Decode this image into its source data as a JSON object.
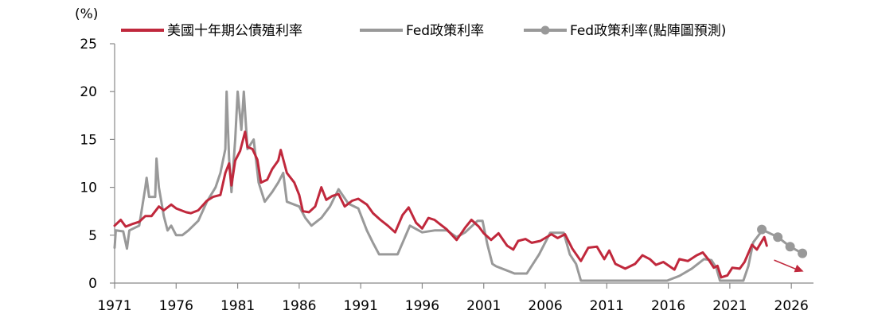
{
  "chart_data": {
    "type": "line",
    "ylabel": "(%)",
    "ylim": [
      0,
      25
    ],
    "xlim": [
      1971,
      2027.8
    ],
    "x_ticks": [
      "1971",
      "1976",
      "1981",
      "1986",
      "1991",
      "1996",
      "2001",
      "2006",
      "2011",
      "2016",
      "2021",
      "2026"
    ],
    "y_ticks": [
      "25",
      "20",
      "15",
      "10",
      "5",
      "0"
    ],
    "grid": false,
    "legend_position": "top",
    "colors": {
      "treasury": "#c0283c",
      "fed": "#999999",
      "dot_plot": "#999999",
      "axis": "#888888"
    },
    "series": [
      {
        "name": "美國十年期公債殖利率",
        "points": [
          [
            1971.0,
            6.0
          ],
          [
            1971.5,
            6.6
          ],
          [
            1971.9,
            5.9
          ],
          [
            1972.5,
            6.2
          ],
          [
            1973.0,
            6.4
          ],
          [
            1973.5,
            7.0
          ],
          [
            1974.0,
            7.0
          ],
          [
            1974.6,
            8.0
          ],
          [
            1975.0,
            7.6
          ],
          [
            1975.6,
            8.2
          ],
          [
            1976.0,
            7.8
          ],
          [
            1976.8,
            7.4
          ],
          [
            1977.2,
            7.3
          ],
          [
            1977.8,
            7.6
          ],
          [
            1978.5,
            8.6
          ],
          [
            1979.0,
            9.0
          ],
          [
            1979.6,
            9.2
          ],
          [
            1980.0,
            11.5
          ],
          [
            1980.3,
            12.5
          ],
          [
            1980.5,
            10.2
          ],
          [
            1980.8,
            12.8
          ],
          [
            1981.2,
            13.8
          ],
          [
            1981.6,
            15.8
          ],
          [
            1981.8,
            14.2
          ],
          [
            1982.2,
            14.0
          ],
          [
            1982.6,
            12.9
          ],
          [
            1982.9,
            10.5
          ],
          [
            1983.4,
            10.8
          ],
          [
            1983.8,
            11.9
          ],
          [
            1984.3,
            12.8
          ],
          [
            1984.5,
            13.9
          ],
          [
            1985.0,
            11.5
          ],
          [
            1985.6,
            10.5
          ],
          [
            1986.0,
            9.2
          ],
          [
            1986.3,
            7.5
          ],
          [
            1986.8,
            7.4
          ],
          [
            1987.3,
            8.0
          ],
          [
            1987.8,
            10.0
          ],
          [
            1988.2,
            8.7
          ],
          [
            1988.7,
            9.1
          ],
          [
            1989.2,
            9.3
          ],
          [
            1989.7,
            8.0
          ],
          [
            1990.3,
            8.6
          ],
          [
            1990.8,
            8.8
          ],
          [
            1991.5,
            8.2
          ],
          [
            1992.0,
            7.3
          ],
          [
            1992.6,
            6.6
          ],
          [
            1993.2,
            6.0
          ],
          [
            1993.8,
            5.3
          ],
          [
            1994.4,
            7.1
          ],
          [
            1994.9,
            7.9
          ],
          [
            1995.5,
            6.3
          ],
          [
            1996.0,
            5.7
          ],
          [
            1996.5,
            6.8
          ],
          [
            1997.0,
            6.6
          ],
          [
            1997.5,
            6.1
          ],
          [
            1998.0,
            5.6
          ],
          [
            1998.8,
            4.5
          ],
          [
            1999.5,
            5.8
          ],
          [
            2000.0,
            6.6
          ],
          [
            2000.6,
            5.9
          ],
          [
            2001.0,
            5.2
          ],
          [
            2001.6,
            4.5
          ],
          [
            2002.2,
            5.2
          ],
          [
            2002.9,
            3.9
          ],
          [
            2003.4,
            3.5
          ],
          [
            2003.8,
            4.4
          ],
          [
            2004.4,
            4.6
          ],
          [
            2004.9,
            4.2
          ],
          [
            2005.6,
            4.4
          ],
          [
            2006.5,
            5.1
          ],
          [
            2007.0,
            4.7
          ],
          [
            2007.6,
            5.1
          ],
          [
            2008.2,
            3.6
          ],
          [
            2008.9,
            2.3
          ],
          [
            2009.5,
            3.7
          ],
          [
            2010.2,
            3.8
          ],
          [
            2010.8,
            2.5
          ],
          [
            2011.2,
            3.4
          ],
          [
            2011.7,
            2.0
          ],
          [
            2012.5,
            1.5
          ],
          [
            2013.3,
            2.0
          ],
          [
            2013.9,
            2.9
          ],
          [
            2014.5,
            2.5
          ],
          [
            2015.0,
            1.9
          ],
          [
            2015.6,
            2.2
          ],
          [
            2016.5,
            1.4
          ],
          [
            2016.9,
            2.5
          ],
          [
            2017.6,
            2.3
          ],
          [
            2018.3,
            2.9
          ],
          [
            2018.8,
            3.2
          ],
          [
            2019.3,
            2.4
          ],
          [
            2019.7,
            1.6
          ],
          [
            2020.0,
            1.8
          ],
          [
            2020.3,
            0.6
          ],
          [
            2020.8,
            0.8
          ],
          [
            2021.2,
            1.6
          ],
          [
            2021.8,
            1.5
          ],
          [
            2022.2,
            2.2
          ],
          [
            2022.8,
            4.0
          ],
          [
            2023.2,
            3.5
          ],
          [
            2023.8,
            4.8
          ],
          [
            2024.0,
            3.9
          ]
        ]
      },
      {
        "name": "Fed政策利率",
        "points": [
          [
            1971.0,
            3.7
          ],
          [
            1971.1,
            5.5
          ],
          [
            1971.7,
            5.4
          ],
          [
            1972.0,
            3.6
          ],
          [
            1972.2,
            5.5
          ],
          [
            1973.0,
            6.0
          ],
          [
            1973.5,
            10.0
          ],
          [
            1973.6,
            11.0
          ],
          [
            1973.8,
            9.0
          ],
          [
            1974.3,
            9.0
          ],
          [
            1974.4,
            13.0
          ],
          [
            1974.6,
            10.0
          ],
          [
            1975.0,
            7.0
          ],
          [
            1975.3,
            5.5
          ],
          [
            1975.6,
            6.0
          ],
          [
            1976.0,
            5.0
          ],
          [
            1976.5,
            5.0
          ],
          [
            1977.0,
            5.5
          ],
          [
            1977.8,
            6.5
          ],
          [
            1978.5,
            8.5
          ],
          [
            1979.2,
            10.0
          ],
          [
            1979.6,
            11.5
          ],
          [
            1980.0,
            14.0
          ],
          [
            1980.1,
            20.0
          ],
          [
            1980.3,
            13.0
          ],
          [
            1980.5,
            9.5
          ],
          [
            1980.8,
            15.0
          ],
          [
            1981.0,
            20.0
          ],
          [
            1981.3,
            16.0
          ],
          [
            1981.5,
            20.0
          ],
          [
            1981.8,
            14.0
          ],
          [
            1982.3,
            15.0
          ],
          [
            1982.7,
            10.5
          ],
          [
            1983.2,
            8.5
          ],
          [
            1983.8,
            9.5
          ],
          [
            1984.3,
            10.5
          ],
          [
            1984.7,
            11.5
          ],
          [
            1985.0,
            8.5
          ],
          [
            1986.0,
            8.0
          ],
          [
            1986.5,
            6.8
          ],
          [
            1987.0,
            6.0
          ],
          [
            1987.8,
            6.8
          ],
          [
            1988.5,
            8.0
          ],
          [
            1989.2,
            9.8
          ],
          [
            1990.0,
            8.3
          ],
          [
            1990.8,
            7.8
          ],
          [
            1991.5,
            5.5
          ],
          [
            1992.0,
            4.2
          ],
          [
            1992.5,
            3.0
          ],
          [
            1993.0,
            3.0
          ],
          [
            1994.0,
            3.0
          ],
          [
            1994.5,
            4.5
          ],
          [
            1995.0,
            6.0
          ],
          [
            1996.0,
            5.3
          ],
          [
            1997.0,
            5.5
          ],
          [
            1998.0,
            5.5
          ],
          [
            1998.8,
            4.8
          ],
          [
            1999.5,
            5.3
          ],
          [
            2000.5,
            6.5
          ],
          [
            2000.9,
            6.5
          ],
          [
            2001.3,
            4.0
          ],
          [
            2001.7,
            2.0
          ],
          [
            2002.0,
            1.75
          ],
          [
            2003.0,
            1.25
          ],
          [
            2003.5,
            1.0
          ],
          [
            2004.5,
            1.0
          ],
          [
            2005.5,
            3.0
          ],
          [
            2006.4,
            5.25
          ],
          [
            2007.5,
            5.25
          ],
          [
            2008.0,
            3.0
          ],
          [
            2008.5,
            2.0
          ],
          [
            2008.9,
            0.25
          ],
          [
            2015.9,
            0.25
          ],
          [
            2016.9,
            0.75
          ],
          [
            2017.9,
            1.5
          ],
          [
            2018.9,
            2.5
          ],
          [
            2019.5,
            2.4
          ],
          [
            2019.9,
            1.6
          ],
          [
            2020.2,
            0.25
          ],
          [
            2022.1,
            0.25
          ],
          [
            2022.5,
            1.75
          ],
          [
            2022.9,
            4.25
          ],
          [
            2023.4,
            5.1
          ],
          [
            2023.6,
            5.4
          ]
        ]
      },
      {
        "name": "Fed政策利率(點陣圖預測)",
        "points": [
          [
            2023.6,
            5.6
          ],
          [
            2024.9,
            4.8
          ],
          [
            2025.9,
            3.8
          ],
          [
            2026.9,
            3.1
          ]
        ]
      }
    ]
  }
}
